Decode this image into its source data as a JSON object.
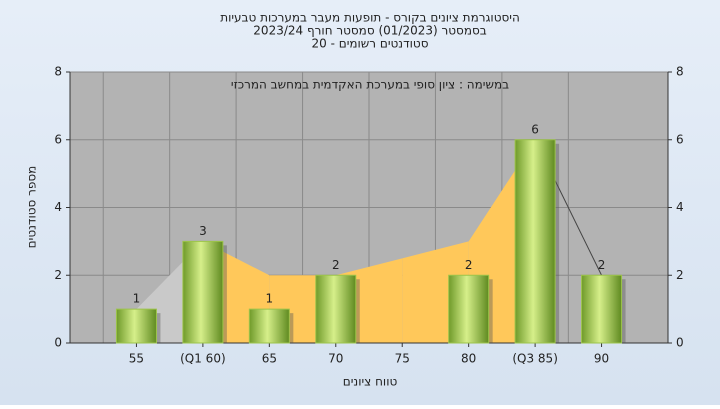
{
  "chart_data": {
    "type": "bar",
    "title": "היסטוגרמת ציונים בקורס - תופעות מעבר במערכות טבעיות",
    "subtitle": [
      "בסמסטר  (01/2023)  סמסטר חורף 2023/24",
      "סטודנטים רשומים - 20"
    ],
    "annotation": "במשימה : ציון סופי במערכת האקדמית במחשב המרכזי",
    "x_label": "טווח ציונים",
    "y_label": "מספר סטודנטים",
    "categories": [
      "55",
      "(Q1 60)",
      "65",
      "70",
      "75",
      "80",
      "(Q3 85)",
      "90"
    ],
    "values": [
      1,
      3,
      1,
      2,
      null,
      2,
      6,
      2
    ],
    "color": "#9cc44a",
    "area": {
      "values": [
        1,
        3,
        2,
        2,
        2.5,
        3,
        6,
        2
      ],
      "segment_colors": [
        "#c9c9c9",
        "#ffc85a",
        "#ffc85a",
        "#ffc85a",
        "#ffc85a",
        "#ffc85a"
      ],
      "line_color": "#444444"
    },
    "ylim": [
      0,
      8
    ],
    "yticks": [
      0,
      2,
      4,
      6,
      8
    ],
    "grid": true
  }
}
